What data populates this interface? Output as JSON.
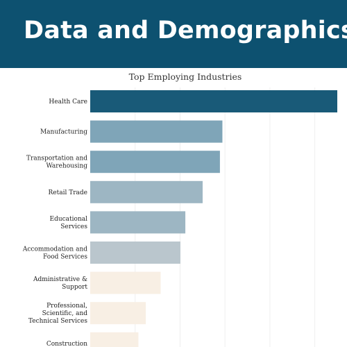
{
  "page": {
    "heading": "Data and Demographics"
  },
  "chart_data": {
    "type": "bar",
    "orientation": "horizontal",
    "title": "Top Employing Industries",
    "categories": [
      "Health Care",
      "Manufacturing",
      "Transportation and Warehousing",
      "Retail Trade",
      "Educational Services",
      "Accommodation and Food Services",
      "Administrative & Support",
      "Professional, Scientific, and Technical Services",
      "Construction"
    ],
    "category_lines": [
      [
        "Health Care"
      ],
      [
        "Manufacturing"
      ],
      [
        "Transportation and",
        "Warehousing"
      ],
      [
        "Retail Trade"
      ],
      [
        "Educational",
        "Services"
      ],
      [
        "Accommodation and",
        "Food Services"
      ],
      [
        "Administrative &",
        "Support"
      ],
      [
        "Professional,",
        "Scientific, and",
        "Technical Services"
      ],
      [
        "Construction"
      ]
    ],
    "values": [
      100,
      53.5,
      52.5,
      45.5,
      38.5,
      36.5,
      28.5,
      22.5,
      19.5
    ],
    "xlim": [
      0,
      100
    ],
    "colors": [
      "#195a78",
      "#7fa5b8",
      "#7fa5b8",
      "#9db6c3",
      "#9db6c3",
      "#bac6cd",
      "#f8efe4",
      "#f8efe4",
      "#f8efe4"
    ],
    "grid": true,
    "gridline_color": "#eeeeee",
    "x_axis_labels": "none",
    "legend": "none"
  }
}
